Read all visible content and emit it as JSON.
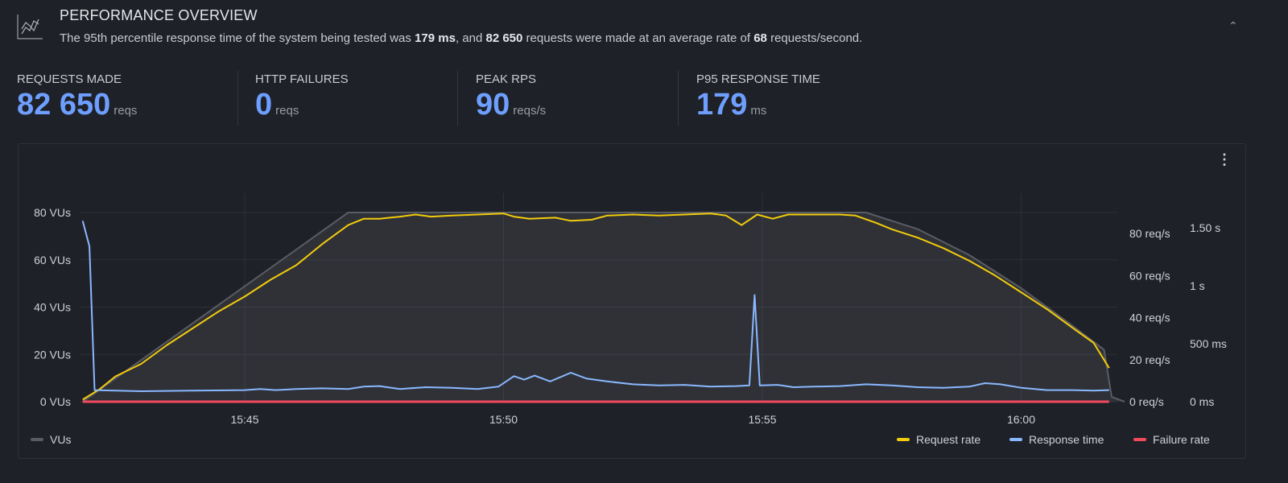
{
  "header": {
    "title": "PERFORMANCE OVERVIEW",
    "summary": {
      "p1": "The 95th percentile response time of the system being tested was ",
      "p95": "179 ms",
      "p2": ", and ",
      "requests": "82 650",
      "p3": " requests were made at an average rate of ",
      "rate": "68",
      "p4": " requests/second."
    },
    "collapse_icon": "chevron-up-icon"
  },
  "stats": [
    {
      "label": "REQUESTS MADE",
      "value": "82 650",
      "unit": "reqs"
    },
    {
      "label": "HTTP FAILURES",
      "value": "0",
      "unit": "reqs"
    },
    {
      "label": "PEAK RPS",
      "value": "90",
      "unit": "reqs/s"
    },
    {
      "label": "P95 RESPONSE TIME",
      "value": "179",
      "unit": "ms"
    }
  ],
  "colors": {
    "accent": "#6e9fff",
    "vus": "#5a5c63",
    "request_rate": "#f2cc0c",
    "response_time": "#8ab8ff",
    "failure_rate": "#f2495c"
  },
  "chart_data": {
    "type": "line",
    "x_unit": "minutes after 15:40",
    "x_range": [
      1.87,
      22
    ],
    "x_ticks": [
      {
        "m": 5,
        "label": "15:45"
      },
      {
        "m": 10,
        "label": "15:50"
      },
      {
        "m": 15,
        "label": "15:55"
      },
      {
        "m": 20,
        "label": "16:00"
      }
    ],
    "y_left": {
      "range": [
        0,
        80
      ],
      "ticks": [
        "0 VUs",
        "20 VUs",
        "40 VUs",
        "60 VUs",
        "80 VUs"
      ]
    },
    "y_right1": {
      "range": [
        0,
        80
      ],
      "ticks": [
        "0 req/s",
        "20 req/s",
        "40 req/s",
        "60 req/s",
        "80 req/s"
      ]
    },
    "y_right2": {
      "range": [
        0,
        1500
      ],
      "ticks": [
        "0 ms",
        "500 ms",
        "1 s",
        "1.50 s"
      ]
    },
    "legend": {
      "vus": "VUs",
      "request_rate": "Request rate",
      "response_time": "Response time",
      "failure_rate": "Failure rate"
    },
    "series": [
      {
        "name": "VUs",
        "axis": "vus",
        "points": [
          [
            1.87,
            0
          ],
          [
            7,
            80
          ],
          [
            17,
            80
          ],
          [
            18,
            73
          ],
          [
            19,
            62
          ],
          [
            20,
            48
          ],
          [
            21,
            32
          ],
          [
            21.6,
            22
          ],
          [
            21.75,
            2
          ],
          [
            22,
            0
          ]
        ]
      },
      {
        "name": "Request rate",
        "axis": "reqs",
        "points": [
          [
            1.87,
            1
          ],
          [
            2.2,
            6
          ],
          [
            2.5,
            12
          ],
          [
            3,
            18
          ],
          [
            3.5,
            27
          ],
          [
            4,
            35
          ],
          [
            4.5,
            43
          ],
          [
            5,
            50
          ],
          [
            5.5,
            58
          ],
          [
            6,
            65
          ],
          [
            6.5,
            75
          ],
          [
            7,
            84
          ],
          [
            7.3,
            87
          ],
          [
            7.6,
            87
          ],
          [
            8,
            88
          ],
          [
            8.3,
            89
          ],
          [
            8.6,
            88
          ],
          [
            9,
            88.5
          ],
          [
            9.5,
            89
          ],
          [
            10,
            89.5
          ],
          [
            10.2,
            88
          ],
          [
            10.5,
            87
          ],
          [
            11,
            87.5
          ],
          [
            11.3,
            86
          ],
          [
            11.7,
            86.5
          ],
          [
            12,
            88.5
          ],
          [
            12.5,
            89
          ],
          [
            13,
            88.5
          ],
          [
            13.5,
            89
          ],
          [
            14,
            89.5
          ],
          [
            14.3,
            88.5
          ],
          [
            14.6,
            84
          ],
          [
            14.9,
            89
          ],
          [
            15.2,
            87
          ],
          [
            15.5,
            89
          ],
          [
            16,
            89
          ],
          [
            16.5,
            89
          ],
          [
            16.8,
            88.5
          ],
          [
            17.2,
            85
          ],
          [
            17.5,
            82
          ],
          [
            18,
            78
          ],
          [
            18.5,
            73
          ],
          [
            19,
            67
          ],
          [
            19.5,
            60
          ],
          [
            20,
            52
          ],
          [
            20.5,
            44
          ],
          [
            21,
            35
          ],
          [
            21.4,
            28
          ],
          [
            21.7,
            16
          ]
        ]
      },
      {
        "name": "Response time",
        "axis": "ms",
        "points": [
          [
            1.87,
            1560
          ],
          [
            2.0,
            1340
          ],
          [
            2.1,
            100
          ],
          [
            3,
            90
          ],
          [
            4,
            95
          ],
          [
            5,
            100
          ],
          [
            5.3,
            110
          ],
          [
            5.6,
            100
          ],
          [
            6,
            110
          ],
          [
            6.5,
            115
          ],
          [
            7,
            110
          ],
          [
            7.3,
            130
          ],
          [
            7.6,
            135
          ],
          [
            8,
            110
          ],
          [
            8.5,
            125
          ],
          [
            9,
            120
          ],
          [
            9.5,
            110
          ],
          [
            9.9,
            130
          ],
          [
            10.2,
            220
          ],
          [
            10.4,
            190
          ],
          [
            10.6,
            225
          ],
          [
            10.9,
            175
          ],
          [
            11.3,
            250
          ],
          [
            11.6,
            200
          ],
          [
            12,
            175
          ],
          [
            12.5,
            150
          ],
          [
            13,
            140
          ],
          [
            13.5,
            145
          ],
          [
            14,
            130
          ],
          [
            14.5,
            135
          ],
          [
            14.75,
            140
          ],
          [
            14.85,
            920
          ],
          [
            14.95,
            140
          ],
          [
            15.3,
            145
          ],
          [
            15.6,
            125
          ],
          [
            16,
            130
          ],
          [
            16.5,
            135
          ],
          [
            17,
            150
          ],
          [
            17.5,
            140
          ],
          [
            18,
            125
          ],
          [
            18.5,
            120
          ],
          [
            19,
            130
          ],
          [
            19.3,
            160
          ],
          [
            19.6,
            150
          ],
          [
            20,
            120
          ],
          [
            20.5,
            100
          ],
          [
            21,
            100
          ],
          [
            21.4,
            95
          ],
          [
            21.7,
            100
          ]
        ]
      },
      {
        "name": "Failure rate",
        "axis": "reqs",
        "points": [
          [
            1.87,
            0
          ],
          [
            21.7,
            0
          ]
        ]
      }
    ]
  }
}
